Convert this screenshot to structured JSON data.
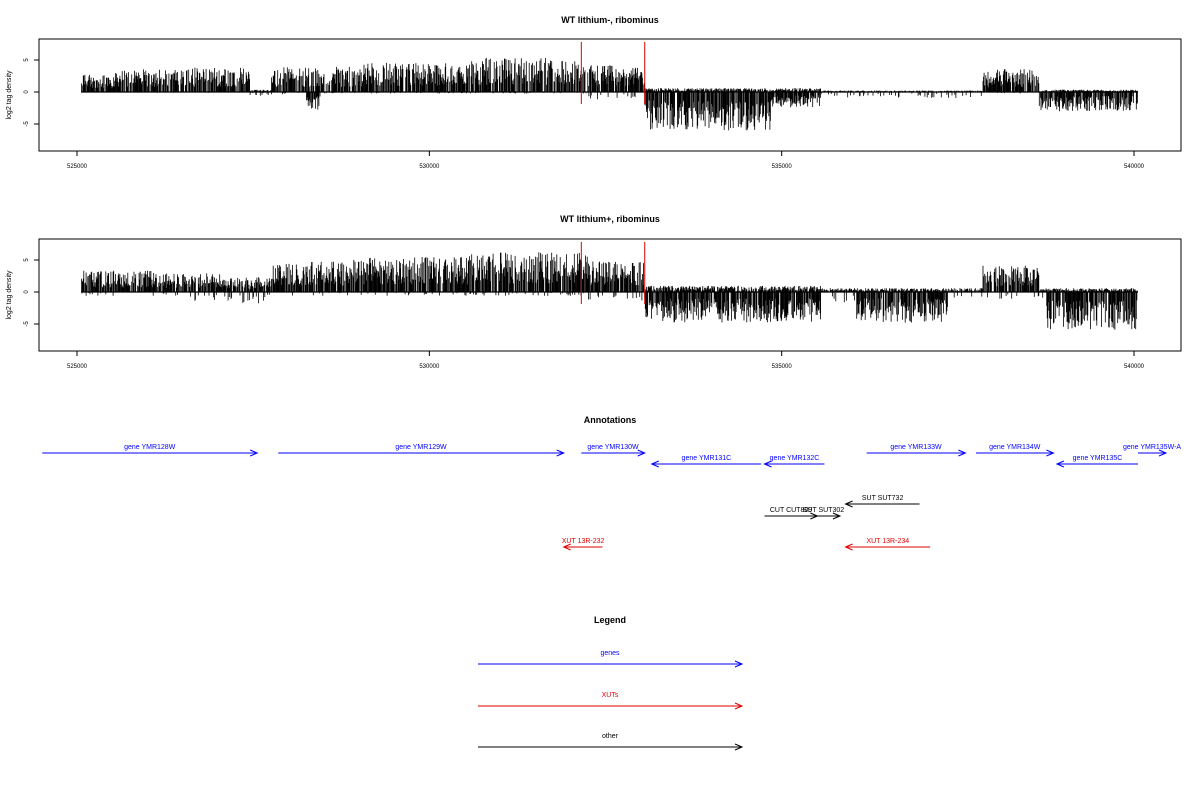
{
  "colors": {
    "gene": "#0000ff",
    "xut": "#dd0000",
    "other": "#000000",
    "marker": "#dd0000",
    "bars": "#000000"
  },
  "chart_data": [
    {
      "type": "bar",
      "title": "WT lithium-, ribominus",
      "ylabel": "log2 tag density",
      "xlim": [
        525000,
        540000
      ],
      "ylim": [
        -8,
        8
      ],
      "x_ticks": [
        "525000",
        "530000",
        "535000",
        "540000"
      ],
      "y_ticks": [
        "5",
        "0",
        "-5"
      ],
      "markers_x": [
        532100,
        533000
      ],
      "profile": {
        "plus": [
          [
            525000,
            525500,
            2.5
          ],
          [
            525500,
            526500,
            3.0
          ],
          [
            526500,
            527400,
            3.2
          ],
          [
            527400,
            527700,
            0.3
          ],
          [
            527700,
            529000,
            3.3
          ],
          [
            529000,
            530500,
            3.8
          ],
          [
            530500,
            532200,
            4.5
          ],
          [
            532200,
            533000,
            3.5
          ],
          [
            533000,
            535500,
            0.5
          ],
          [
            535500,
            537800,
            0.2
          ],
          [
            537800,
            538600,
            3.0
          ],
          [
            538600,
            540000,
            0.3
          ]
        ],
        "minus": [
          [
            525000,
            527400,
            0.1
          ],
          [
            527400,
            527700,
            0.6
          ],
          [
            527700,
            528200,
            0.3
          ],
          [
            528200,
            528400,
            2.5
          ],
          [
            528400,
            532200,
            0.2
          ],
          [
            532200,
            533000,
            1.0
          ],
          [
            533000,
            534800,
            5.0
          ],
          [
            534800,
            535500,
            2.0
          ],
          [
            535500,
            537800,
            0.8
          ],
          [
            537800,
            538600,
            0.2
          ],
          [
            538600,
            540000,
            2.5
          ]
        ]
      }
    },
    {
      "type": "bar",
      "title": "WT lithium+, ribominus",
      "ylabel": "log2 tag density",
      "xlim": [
        525000,
        540000
      ],
      "ylim": [
        -8,
        8
      ],
      "x_ticks": [
        "525000",
        "530000",
        "535000",
        "540000"
      ],
      "y_ticks": [
        "5",
        "0",
        "-5"
      ],
      "markers_x": [
        532100,
        533000
      ],
      "profile": {
        "plus": [
          [
            525000,
            526000,
            2.8
          ],
          [
            526000,
            527000,
            2.5
          ],
          [
            527000,
            527700,
            2.0
          ],
          [
            527700,
            528800,
            4.0
          ],
          [
            528800,
            530500,
            4.6
          ],
          [
            530500,
            532200,
            5.2
          ],
          [
            532200,
            533000,
            4.0
          ],
          [
            533000,
            535500,
            0.8
          ],
          [
            535500,
            537800,
            0.5
          ],
          [
            537800,
            538600,
            3.5
          ],
          [
            538600,
            540000,
            0.5
          ]
        ],
        "minus": [
          [
            525000,
            526500,
            0.5
          ],
          [
            526500,
            527700,
            1.5
          ],
          [
            527700,
            532200,
            0.5
          ],
          [
            532200,
            533000,
            1.2
          ],
          [
            533000,
            535500,
            4.0
          ],
          [
            535500,
            536000,
            1.5
          ],
          [
            536000,
            537300,
            4.0
          ],
          [
            537300,
            538700,
            1.0
          ],
          [
            538700,
            540000,
            5.0
          ]
        ]
      }
    },
    {
      "type": "table",
      "title": "Annotations",
      "features": [
        {
          "kind": "gene",
          "label": "gene YMR128W",
          "start": 524450,
          "end": 527500,
          "dir": "right",
          "row": 0
        },
        {
          "kind": "gene",
          "label": "gene YMR129W",
          "start": 527800,
          "end": 531850,
          "dir": "right",
          "row": 0
        },
        {
          "kind": "gene",
          "label": "gene YMR130W",
          "start": 532100,
          "end": 533000,
          "dir": "right",
          "row": 0
        },
        {
          "kind": "gene",
          "label": "gene YMR131C",
          "start": 533100,
          "end": 534650,
          "dir": "left",
          "row": 1
        },
        {
          "kind": "gene",
          "label": "gene YMR132C",
          "start": 534700,
          "end": 535550,
          "dir": "left",
          "row": 1
        },
        {
          "kind": "gene",
          "label": "gene YMR133W",
          "start": 536150,
          "end": 537550,
          "dir": "right",
          "row": 0
        },
        {
          "kind": "gene",
          "label": "gene YMR134W",
          "start": 537700,
          "end": 538800,
          "dir": "right",
          "row": 0
        },
        {
          "kind": "gene",
          "label": "gene YMR135C",
          "start": 538850,
          "end": 540000,
          "dir": "left",
          "row": 1
        },
        {
          "kind": "gene",
          "label": "gene YMR135W-A",
          "start": 540000,
          "end": 540400,
          "dir": "right",
          "row": 0
        },
        {
          "kind": "other",
          "label": "SUT SUT732",
          "start": 535850,
          "end": 536900,
          "dir": "left",
          "row": 2
        },
        {
          "kind": "other",
          "label": "CUT CUT809",
          "start": 534700,
          "end": 535450,
          "dir": "right",
          "row": 3
        },
        {
          "kind": "other",
          "label": "SUT SUT302",
          "start": 535300,
          "end": 535770,
          "dir": "right",
          "row": 3
        },
        {
          "kind": "xut",
          "label": "XUT 13R-232",
          "start": 531850,
          "end": 532400,
          "dir": "left",
          "row": 4
        },
        {
          "kind": "xut",
          "label": "XUT 13R-234",
          "start": 535850,
          "end": 537050,
          "dir": "left",
          "row": 4
        }
      ]
    },
    {
      "type": "table",
      "title": "Legend",
      "entries": [
        {
          "kind": "gene",
          "label": "genes"
        },
        {
          "kind": "xut",
          "label": "XUTs"
        },
        {
          "kind": "other",
          "label": "other"
        }
      ]
    }
  ]
}
